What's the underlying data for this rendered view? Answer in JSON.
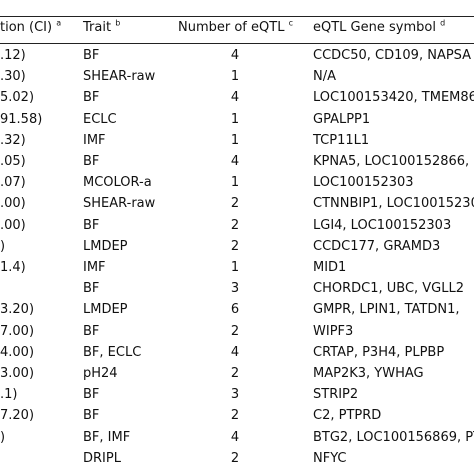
{
  "headers": {
    "col1": "tion (CI)",
    "col1_sup": "a",
    "col2": "Trait",
    "col2_sup": "b",
    "col3": "Number of eQTL",
    "col3_sup": "c",
    "col4": "eQTL Gene symbol",
    "col4_sup": "d"
  },
  "rows": [
    {
      "ci": ".12)",
      "trait": "BF",
      "n": "4",
      "genes": "CCDC50, CD109, NAPSA"
    },
    {
      "ci": ".30)",
      "trait": "SHEAR-raw",
      "n": "1",
      "genes": "N/A"
    },
    {
      "ci": "5.02)",
      "trait": "BF",
      "n": "4",
      "genes": "LOC100153420, TMEM86"
    },
    {
      "ci": "91.58)",
      "trait": "ECLC",
      "n": "1",
      "genes": "GPALPP1"
    },
    {
      "ci": ".32)",
      "trait": "IMF",
      "n": "1",
      "genes": "TCP11L1"
    },
    {
      "ci": ".05)",
      "trait": "BF",
      "n": "4",
      "genes": "KPNA5, LOC100152866,"
    },
    {
      "ci": ".07)",
      "trait": "MCOLOR-a",
      "n": "1",
      "genes": "LOC100152303"
    },
    {
      "ci": ".00)",
      "trait": "SHEAR-raw",
      "n": "2",
      "genes": "CTNNBIP1, LOC10015230"
    },
    {
      "ci": ".00)",
      "trait": "BF",
      "n": "2",
      "genes": "LGI4, LOC100152303"
    },
    {
      "ci": ")",
      "trait": "LMDEP",
      "n": "2",
      "genes": "CCDC177, GRAMD3"
    },
    {
      "ci": "1.4)",
      "trait": "IMF",
      "n": "1",
      "genes": "MID1"
    },
    {
      "ci": "",
      "trait": "BF",
      "n": "3",
      "genes": "CHORDC1, UBC, VGLL2"
    },
    {
      "ci": "3.20)",
      "trait": "LMDEP",
      "n": "6",
      "genes": "GMPR, LPIN1, TATDN1,"
    },
    {
      "ci": "7.00)",
      "trait": "BF",
      "n": "2",
      "genes": "WIPF3"
    },
    {
      "ci": "4.00)",
      "trait": "BF, ECLC",
      "n": "4",
      "genes": "CRTAP, P3H4, PLPBP"
    },
    {
      "ci": "3.00)",
      "trait": "pH24",
      "n": "2",
      "genes": "MAP2K3, YWHAG"
    },
    {
      "ci": ".1)",
      "trait": "BF",
      "n": "3",
      "genes": "STRIP2"
    },
    {
      "ci": "7.20)",
      "trait": "BF",
      "n": "2",
      "genes": "C2, PTPRD"
    },
    {
      "ci": ")",
      "trait": "BF, IMF",
      "n": "4",
      "genes": "BTG2, LOC100156869, PT"
    },
    {
      "ci": "",
      "trait": "DRIPL",
      "n": "2",
      "genes": "NFYC"
    }
  ]
}
